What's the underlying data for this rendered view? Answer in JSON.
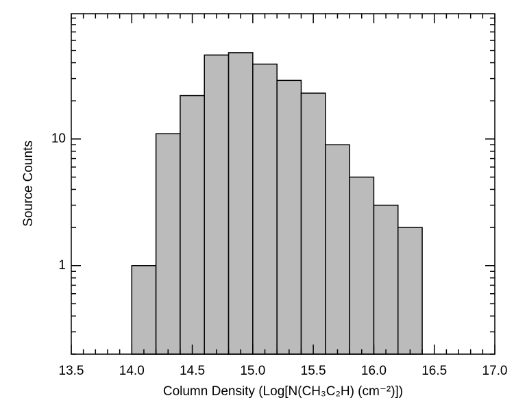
{
  "chart_data": {
    "type": "histogram",
    "xlabel": "Column Density (Log[N(CH₃C₂H) (cm⁻²)])",
    "ylabel": "Source Counts",
    "bins": [
      14.0,
      14.2,
      14.4,
      14.6,
      14.8,
      15.0,
      15.2,
      15.4,
      15.6,
      15.8,
      16.0,
      16.2,
      16.4
    ],
    "counts": [
      1,
      11,
      22,
      46,
      48,
      39,
      29,
      23,
      9,
      5,
      3,
      2
    ],
    "color": "#bbbbbb",
    "xlim": [
      13.5,
      17.0
    ],
    "xticks": [
      13.5,
      {
        "value": 14,
        "label": "14.0"
      },
      14.5,
      {
        "value": 15,
        "label": "15.0"
      },
      15.5,
      {
        "value": 16,
        "label": "16.0"
      },
      16.5,
      {
        "value": 17,
        "label": "17.0"
      }
    ],
    "xminorticks": [
      13.6,
      13.7,
      13.8,
      13.9,
      14.1,
      14.2,
      14.3,
      14.4,
      14.6,
      14.7,
      14.8,
      14.9,
      15.1,
      15.2,
      15.3,
      15.4,
      15.6,
      15.7,
      15.8,
      15.9,
      16.1,
      16.2,
      16.3,
      16.4,
      16.6,
      16.7,
      16.8,
      16.9
    ],
    "ylim": [
      0.2,
      97.5
    ],
    "yscale": "log",
    "yticks": [
      1,
      10
    ],
    "yminorticks": [
      0.2,
      0.3,
      0.4,
      0.5,
      0.6,
      0.7,
      0.8,
      0.9,
      2,
      3,
      4,
      5,
      6,
      7,
      8,
      9,
      20,
      30,
      40,
      50,
      60,
      70,
      80,
      90
    ]
  }
}
